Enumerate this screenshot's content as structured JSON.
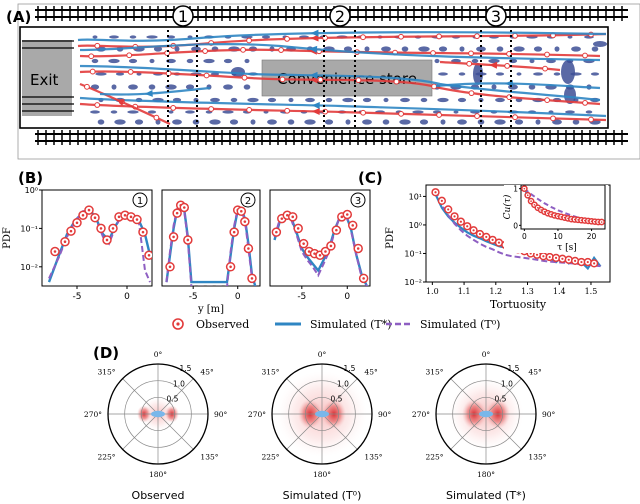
{
  "panel_labels": {
    "a": "(A)",
    "b": "(B)",
    "c": "(C)",
    "d": "(D)"
  },
  "panel_a": {
    "exit_label": "Exit",
    "store_label": "Convenience store",
    "section_markers": [
      "1",
      "2",
      "3"
    ]
  },
  "colors": {
    "observed": "#e23b3b",
    "simulated_tstar": "#2f86c3",
    "simulated_t0": "#8e5fc2",
    "ellipse": "#3d4f95",
    "density": "#d8282d",
    "center": "#79b7ea"
  },
  "chart_data": [
    {
      "id": "pdf-section-1",
      "type": "line",
      "title": "1",
      "ylabel": "PDF",
      "xlabel": "",
      "xlim": [
        -8.5,
        2.5
      ],
      "ylim_log10": [
        -2.5,
        0
      ],
      "xticks": [
        -5,
        0
      ],
      "xtick_labels": [
        "-5",
        "0"
      ],
      "yticks_log10": [
        -2,
        -1,
        0
      ],
      "ytick_labels": [
        "10⁻²",
        "10⁻¹",
        "10⁰"
      ],
      "observed": {
        "x": [
          -7.2,
          -6.2,
          -5.6,
          -5.0,
          -4.4,
          -3.8,
          -3.2,
          -2.6,
          -2.0,
          -1.4,
          -0.8,
          -0.2,
          0.4,
          1.0,
          1.6,
          2.2
        ],
        "y": [
          0.025,
          0.045,
          0.085,
          0.14,
          0.22,
          0.3,
          0.19,
          0.1,
          0.05,
          0.1,
          0.2,
          0.22,
          0.2,
          0.17,
          0.08,
          0.02
        ]
      },
      "simulated_tstar": {
        "x": [
          -7.8,
          -6.8,
          -6.0,
          -5.2,
          -4.4,
          -3.6,
          -3.0,
          -2.4,
          -1.8,
          -1.2,
          -0.6,
          0.0,
          0.6,
          1.2,
          1.8,
          2.3
        ],
        "y": [
          0.004,
          0.02,
          0.07,
          0.16,
          0.26,
          0.28,
          0.16,
          0.07,
          0.05,
          0.11,
          0.2,
          0.22,
          0.21,
          0.16,
          0.07,
          0.02
        ]
      },
      "simulated_t0": {
        "x": [
          -7.8,
          -6.8,
          -6.0,
          -5.2,
          -4.4,
          -3.6,
          -3.0,
          -2.4,
          -1.8,
          -1.2,
          -0.6,
          0.0,
          0.6,
          1.2,
          1.8,
          2.3
        ],
        "y": [
          0.005,
          0.018,
          0.06,
          0.15,
          0.28,
          0.3,
          0.15,
          0.06,
          0.04,
          0.1,
          0.21,
          0.24,
          0.22,
          0.14,
          0.008,
          0.004
        ]
      }
    },
    {
      "id": "pdf-section-2",
      "type": "line",
      "title": "2",
      "xlabel": "y [m]",
      "xlim": [
        -8.5,
        2.5
      ],
      "ylim_log10": [
        -2.5,
        0
      ],
      "xticks": [
        -5,
        0
      ],
      "xtick_labels": [
        "-5",
        "0"
      ],
      "observed": {
        "x": [
          -7.6,
          -7.2,
          -6.8,
          -6.4,
          -6.0,
          -5.6,
          -0.8,
          -0.4,
          0.0,
          0.4,
          0.8,
          1.2,
          1.6
        ],
        "y": [
          0.01,
          0.06,
          0.25,
          0.4,
          0.35,
          0.05,
          0.01,
          0.08,
          0.3,
          0.28,
          0.15,
          0.03,
          0.005
        ]
      },
      "simulated_tstar": {
        "x": [
          -8.0,
          -7.6,
          -7.2,
          -6.8,
          -6.4,
          -6.0,
          -5.6,
          -5.2,
          -1.2,
          -0.8,
          -0.4,
          0.0,
          0.4,
          0.8,
          1.2,
          1.6,
          2.0
        ],
        "y": [
          0.004,
          0.02,
          0.1,
          0.3,
          0.42,
          0.3,
          0.06,
          0.004,
          0.004,
          0.02,
          0.1,
          0.3,
          0.32,
          0.18,
          0.04,
          0.006,
          0.003
        ]
      },
      "simulated_t0": {
        "x": [
          -8.0,
          -7.6,
          -7.2,
          -6.8,
          -6.4,
          -6.0,
          -5.6,
          -5.2,
          -1.2,
          -0.8,
          -0.4,
          0.0,
          0.4,
          0.8,
          1.2,
          1.6,
          2.0
        ],
        "y": [
          0.004,
          0.025,
          0.12,
          0.32,
          0.44,
          0.28,
          0.05,
          0.003,
          0.003,
          0.025,
          0.12,
          0.32,
          0.3,
          0.16,
          0.03,
          0.005,
          0.003
        ]
      }
    },
    {
      "id": "pdf-section-3",
      "type": "line",
      "title": "3",
      "xlabel": "",
      "xlim": [
        -8.5,
        2.5
      ],
      "ylim_log10": [
        -2.5,
        0
      ],
      "xticks": [
        -5,
        0
      ],
      "xtick_labels": [
        "-5",
        "0"
      ],
      "observed": {
        "x": [
          -7.8,
          -7.2,
          -6.6,
          -6.0,
          -5.4,
          -4.8,
          -4.2,
          -3.6,
          -3.0,
          -2.4,
          -1.8,
          -1.2,
          -0.6,
          0.0,
          0.6,
          1.2,
          1.8
        ],
        "y": [
          0.08,
          0.18,
          0.22,
          0.2,
          0.1,
          0.04,
          0.025,
          0.022,
          0.02,
          0.025,
          0.035,
          0.09,
          0.2,
          0.23,
          0.12,
          0.03,
          0.005
        ]
      },
      "simulated_tstar": {
        "x": [
          -8.0,
          -7.4,
          -6.8,
          -6.2,
          -5.6,
          -5.0,
          -4.4,
          -3.8,
          -3.2,
          -2.6,
          -2.0,
          -1.4,
          -0.8,
          -0.2,
          0.4,
          1.0,
          1.6,
          2.2
        ],
        "y": [
          0.05,
          0.16,
          0.24,
          0.2,
          0.08,
          0.03,
          0.018,
          0.012,
          0.008,
          0.015,
          0.03,
          0.09,
          0.2,
          0.24,
          0.1,
          0.02,
          0.006,
          0.003
        ]
      },
      "simulated_t0": {
        "x": [
          -8.0,
          -7.4,
          -6.8,
          -6.2,
          -5.6,
          -5.0,
          -4.4,
          -3.8,
          -3.2,
          -2.6,
          -2.0,
          -1.4,
          -0.8,
          -0.2,
          0.4,
          1.0,
          1.6,
          2.2
        ],
        "y": [
          0.06,
          0.18,
          0.26,
          0.18,
          0.07,
          0.025,
          0.015,
          0.01,
          0.006,
          0.012,
          0.025,
          0.08,
          0.21,
          0.25,
          0.09,
          0.02,
          0.005,
          0.003
        ]
      }
    },
    {
      "id": "tortuosity-pdf",
      "type": "line",
      "title": "",
      "xlabel": "Tortuosity",
      "ylabel": "PDF",
      "xlim": [
        0.98,
        1.56
      ],
      "ylim_log10": [
        -2,
        1.4
      ],
      "xticks": [
        1.0,
        1.1,
        1.2,
        1.3,
        1.4,
        1.5
      ],
      "xtick_labels": [
        "1.0",
        "1.1",
        "1.2",
        "1.3",
        "1.4",
        "1.5"
      ],
      "yticks_log10": [
        -2,
        -1,
        0,
        1
      ],
      "ytick_labels": [
        "10⁻²",
        "10⁻¹",
        "10⁰",
        "10¹"
      ],
      "observed": {
        "x": [
          1.01,
          1.03,
          1.05,
          1.07,
          1.09,
          1.11,
          1.13,
          1.15,
          1.17,
          1.19,
          1.21,
          1.23,
          1.25,
          1.27,
          1.29,
          1.31,
          1.33,
          1.35,
          1.37,
          1.39,
          1.41,
          1.43,
          1.45,
          1.47,
          1.49,
          1.51
        ],
        "y": [
          14,
          7,
          3.5,
          2.0,
          1.3,
          0.9,
          0.65,
          0.48,
          0.38,
          0.3,
          0.24,
          0.2,
          0.17,
          0.14,
          0.12,
          0.1,
          0.09,
          0.08,
          0.075,
          0.07,
          0.065,
          0.06,
          0.055,
          0.05,
          0.05,
          0.045
        ]
      },
      "simulated_tstar": {
        "x": [
          1.01,
          1.03,
          1.05,
          1.07,
          1.09,
          1.11,
          1.13,
          1.15,
          1.17,
          1.19,
          1.21,
          1.23,
          1.25,
          1.27,
          1.29,
          1.31,
          1.33,
          1.35,
          1.37,
          1.39,
          1.41,
          1.43,
          1.45,
          1.47,
          1.49,
          1.51,
          1.53
        ],
        "y": [
          12,
          4,
          2.0,
          1.2,
          0.8,
          0.55,
          0.42,
          0.34,
          0.27,
          0.22,
          0.18,
          0.16,
          0.14,
          0.12,
          0.11,
          0.09,
          0.085,
          0.08,
          0.07,
          0.05,
          0.08,
          0.045,
          0.06,
          0.05,
          0.03,
          0.07,
          0.035
        ]
      },
      "simulated_t0": {
        "x": [
          1.01,
          1.03,
          1.05,
          1.07,
          1.09,
          1.11,
          1.13,
          1.15,
          1.17,
          1.19,
          1.21,
          1.23,
          1.25,
          1.27,
          1.29,
          1.31,
          1.33,
          1.35,
          1.37,
          1.39,
          1.41,
          1.43,
          1.45,
          1.47,
          1.49,
          1.51,
          1.53
        ],
        "y": [
          16,
          5,
          2.2,
          1.1,
          0.65,
          0.42,
          0.3,
          0.22,
          0.17,
          0.14,
          0.11,
          0.09,
          0.08,
          0.075,
          0.07,
          0.065,
          0.06,
          0.055,
          0.052,
          0.05,
          0.048,
          0.046,
          0.044,
          0.042,
          0.04,
          0.038,
          0.036
        ]
      }
    },
    {
      "id": "autocorrelation-inset",
      "type": "line",
      "title": "",
      "xlabel": "τ [s]",
      "ylabel": "Cu(τ)",
      "xlim": [
        -1,
        24
      ],
      "ylim": [
        -0.1,
        1.1
      ],
      "xticks": [
        0,
        10,
        20
      ],
      "xtick_labels": [
        "0",
        "10",
        "20"
      ],
      "yticks": [
        0,
        1
      ],
      "ytick_labels": [
        "0",
        "1"
      ],
      "observed": {
        "x": [
          0,
          1,
          2,
          3,
          4,
          5,
          6,
          7,
          8,
          9,
          10,
          11,
          12,
          13,
          14,
          15,
          16,
          17,
          18,
          19,
          20,
          21,
          22,
          23
        ],
        "y": [
          1.0,
          0.82,
          0.66,
          0.56,
          0.48,
          0.42,
          0.37,
          0.33,
          0.3,
          0.27,
          0.25,
          0.23,
          0.21,
          0.19,
          0.17,
          0.16,
          0.15,
          0.14,
          0.13,
          0.12,
          0.11,
          0.1,
          0.09,
          0.09
        ]
      },
      "simulated_tstar": {
        "x": [
          0,
          2,
          4,
          6,
          8,
          10,
          12,
          14,
          16,
          18,
          20,
          22,
          23
        ],
        "y": [
          1.0,
          0.62,
          0.42,
          0.32,
          0.25,
          0.2,
          0.16,
          0.13,
          0.11,
          0.09,
          0.08,
          0.07,
          0.065
        ]
      },
      "simulated_t0": {
        "x": [
          0,
          2,
          4,
          6,
          8,
          10,
          12,
          14,
          16,
          18,
          20,
          22,
          23
        ],
        "y": [
          1.0,
          0.85,
          0.72,
          0.6,
          0.5,
          0.41,
          0.34,
          0.27,
          0.21,
          0.16,
          0.12,
          0.09,
          0.08
        ]
      }
    },
    {
      "id": "velocity-polar",
      "type": "heatmap",
      "angle_labels": [
        "0°",
        "45°",
        "90°",
        "135°",
        "180°",
        "225°",
        "270°",
        "315°"
      ],
      "radial_ticks": [
        0.5,
        1.0,
        1.5
      ],
      "radial_tick_labels": [
        "0.5",
        "1.0",
        "1.5"
      ],
      "panels": [
        {
          "caption": "Observed",
          "spread": 0.35
        },
        {
          "caption": "Simulated (T⁰)",
          "spread": 0.9
        },
        {
          "caption": "Simulated (T*)",
          "spread": 0.75
        }
      ]
    }
  ],
  "legend": {
    "observed": "Observed",
    "simulated_tstar": "Simulated (T*)",
    "simulated_t0": "Simulated (T⁰)"
  }
}
